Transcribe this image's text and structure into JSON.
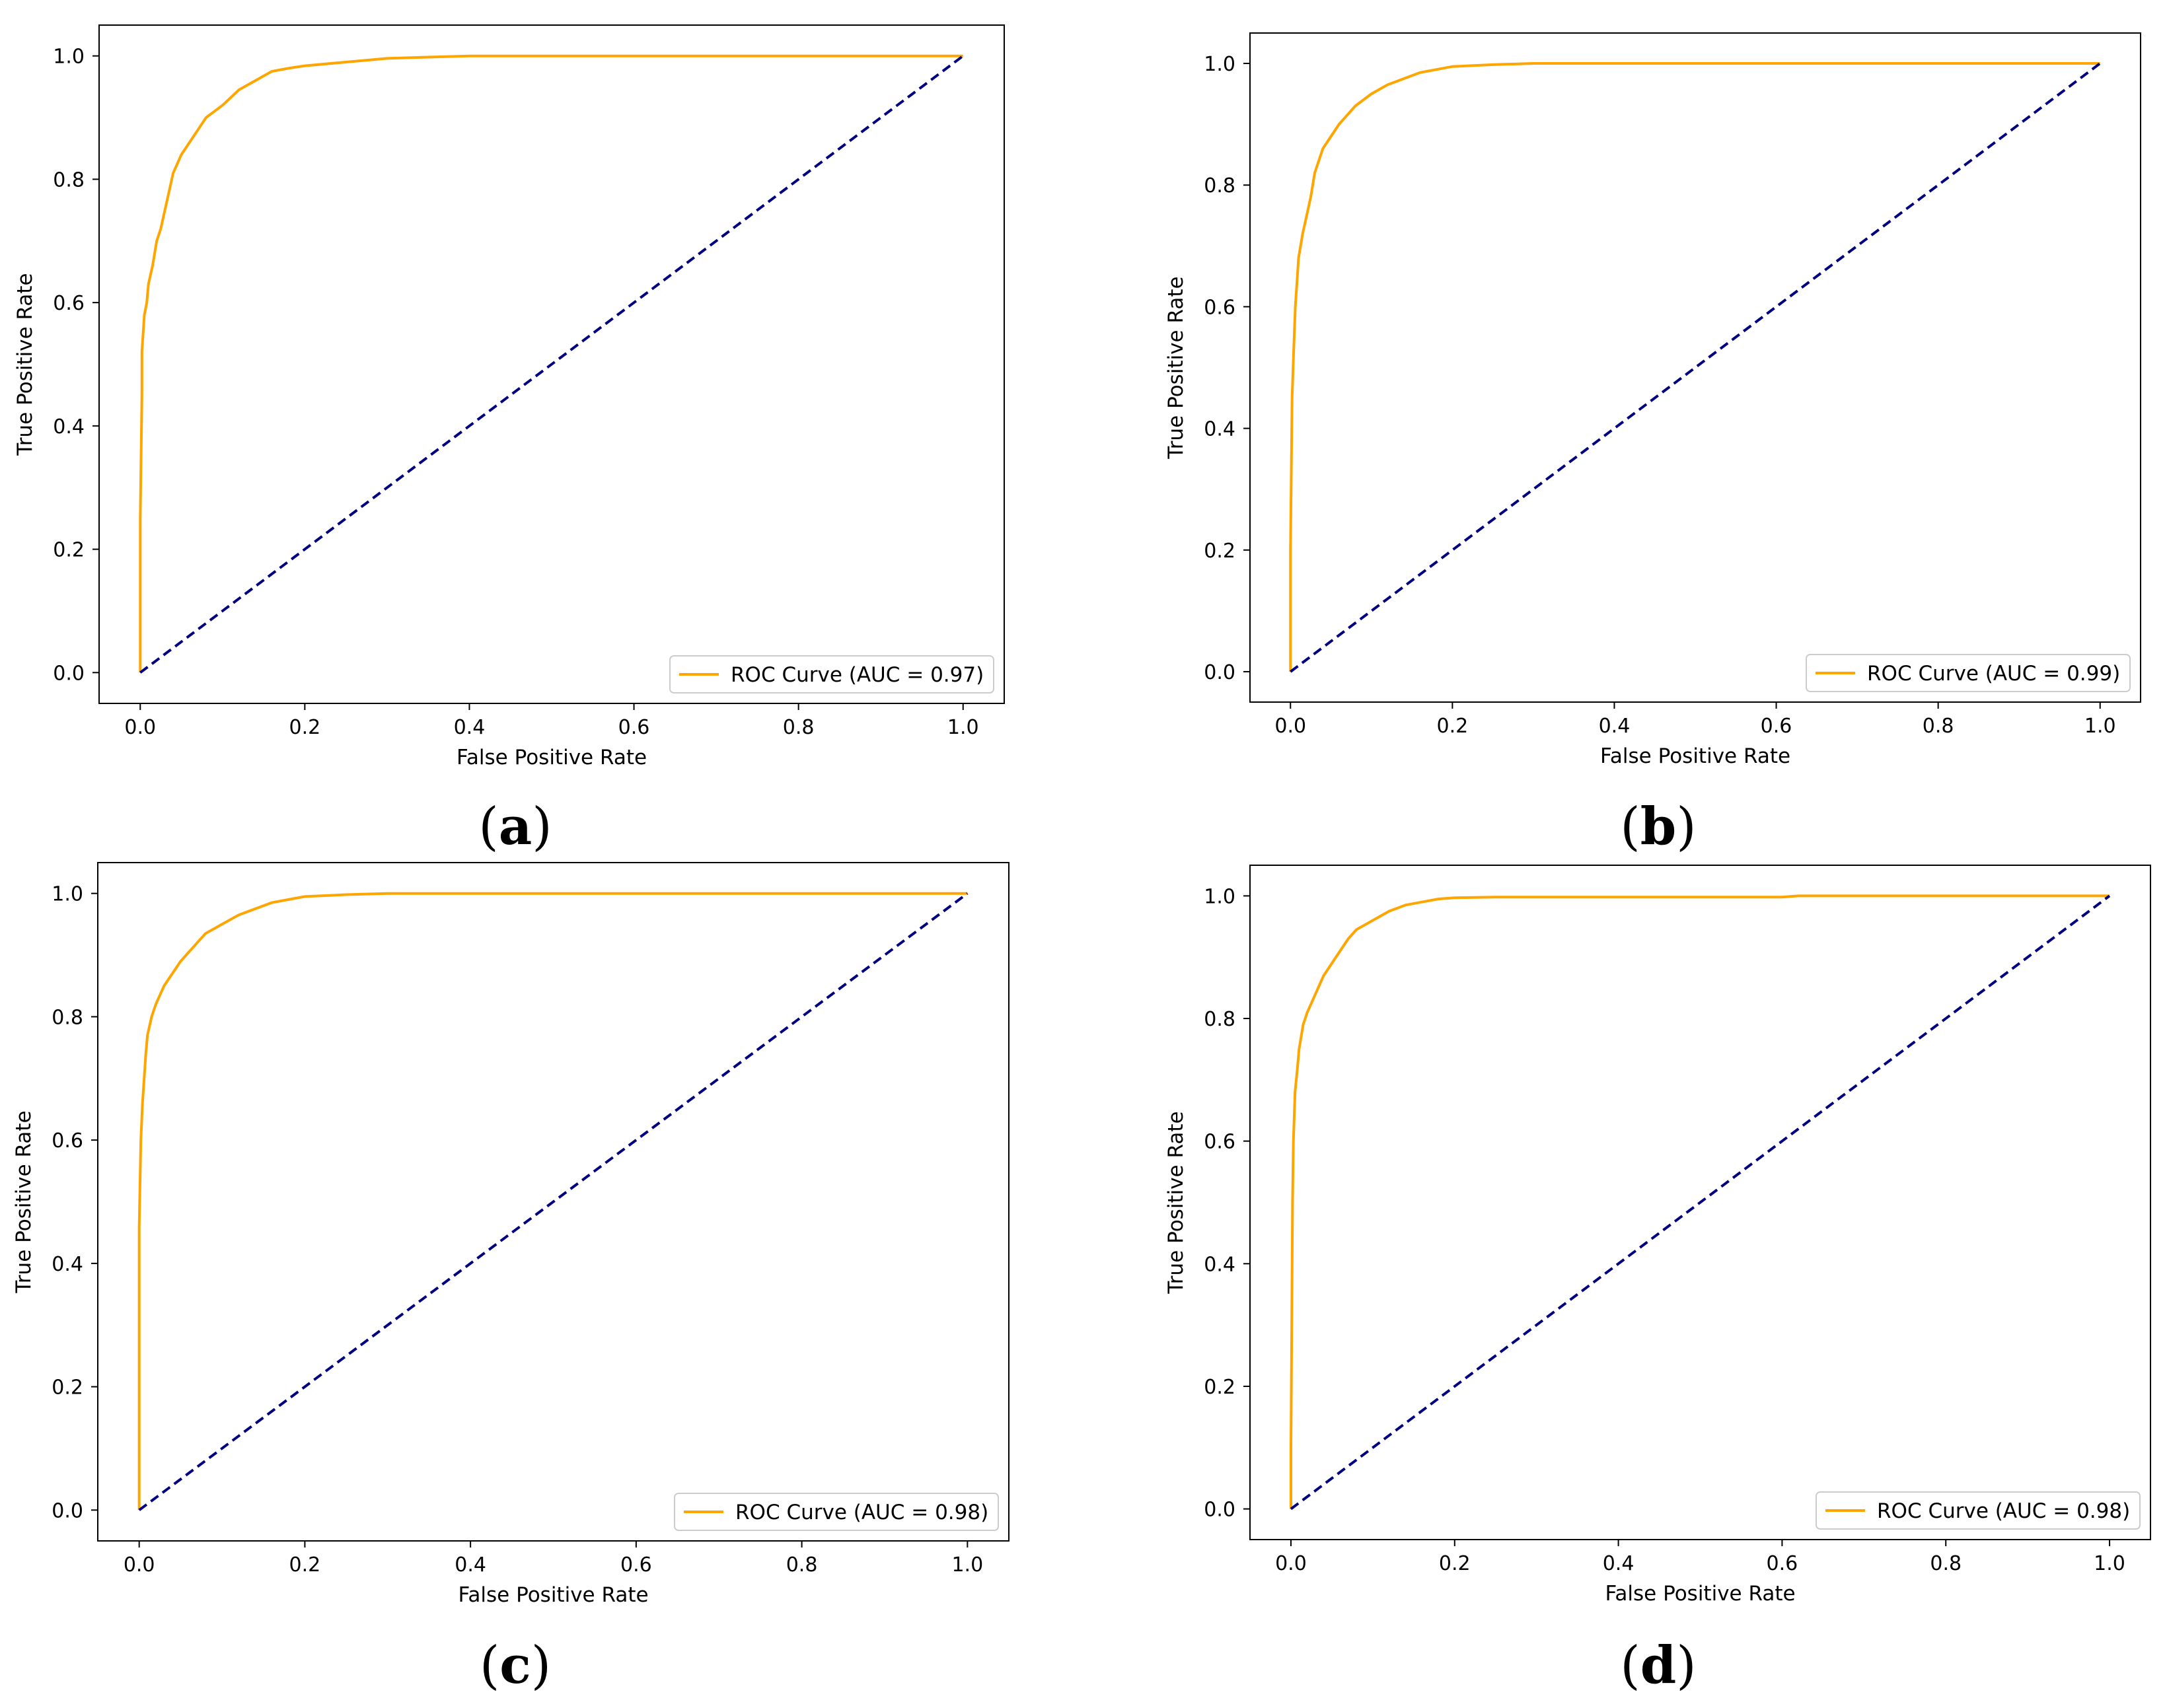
{
  "chart_data": [
    {
      "type": "line",
      "panel_label": "a",
      "xlabel": "False Positive Rate",
      "ylabel": "True Positive Rate",
      "xlim": [
        -0.05,
        1.05
      ],
      "ylim": [
        -0.05,
        1.05
      ],
      "xticks": [
        "0.0",
        "0.2",
        "0.4",
        "0.6",
        "0.8",
        "1.0"
      ],
      "yticks": [
        "0.0",
        "0.2",
        "0.4",
        "0.6",
        "0.8",
        "1.0"
      ],
      "legend_location": "lower-right",
      "series": [
        {
          "name": "ROC Curve (AUC = 0.97)",
          "color": "#ffa500",
          "style": "solid",
          "x": [
            0,
            0,
            0.002,
            0.002,
            0.005,
            0.008,
            0.01,
            0.015,
            0.02,
            0.025,
            0.03,
            0.035,
            0.04,
            0.05,
            0.06,
            0.07,
            0.08,
            0.09,
            0.1,
            0.12,
            0.14,
            0.16,
            0.18,
            0.2,
            0.25,
            0.3,
            0.35,
            0.4,
            0.45,
            0.5,
            0.6,
            0.7,
            0.8,
            0.9,
            1.0
          ],
          "y": [
            0,
            0.25,
            0.45,
            0.52,
            0.58,
            0.6,
            0.63,
            0.66,
            0.7,
            0.72,
            0.75,
            0.78,
            0.81,
            0.84,
            0.86,
            0.88,
            0.9,
            0.91,
            0.92,
            0.945,
            0.96,
            0.975,
            0.98,
            0.984,
            0.99,
            0.996,
            0.998,
            1.0,
            1.0,
            1.0,
            1.0,
            1.0,
            1.0,
            1.0,
            1.0
          ]
        },
        {
          "name": "chance",
          "color": "#000080",
          "style": "dashed",
          "x": [
            0,
            1
          ],
          "y": [
            0,
            1
          ]
        }
      ]
    },
    {
      "type": "line",
      "panel_label": "b",
      "xlabel": "False Positive Rate",
      "ylabel": "True Positive Rate",
      "xlim": [
        -0.05,
        1.05
      ],
      "ylim": [
        -0.05,
        1.05
      ],
      "xticks": [
        "0.0",
        "0.2",
        "0.4",
        "0.6",
        "0.8",
        "1.0"
      ],
      "yticks": [
        "0.0",
        "0.2",
        "0.4",
        "0.6",
        "0.8",
        "1.0"
      ],
      "legend_location": "lower-right",
      "series": [
        {
          "name": "ROC Curve (AUC = 0.99)",
          "color": "#ffa500",
          "style": "solid",
          "x": [
            0,
            0,
            0.002,
            0.004,
            0.006,
            0.008,
            0.01,
            0.015,
            0.02,
            0.025,
            0.03,
            0.04,
            0.05,
            0.06,
            0.07,
            0.08,
            0.1,
            0.12,
            0.14,
            0.16,
            0.18,
            0.2,
            0.25,
            0.3,
            0.4,
            0.5,
            0.6,
            0.7,
            0.8,
            0.9,
            1.0
          ],
          "y": [
            0,
            0.2,
            0.45,
            0.53,
            0.6,
            0.64,
            0.68,
            0.72,
            0.75,
            0.78,
            0.82,
            0.86,
            0.88,
            0.9,
            0.915,
            0.93,
            0.95,
            0.965,
            0.975,
            0.985,
            0.99,
            0.995,
            0.998,
            1.0,
            1.0,
            1.0,
            1.0,
            1.0,
            1.0,
            1.0,
            1.0
          ]
        },
        {
          "name": "chance",
          "color": "#000080",
          "style": "dashed",
          "x": [
            0,
            1
          ],
          "y": [
            0,
            1
          ]
        }
      ]
    },
    {
      "type": "line",
      "panel_label": "c",
      "xlabel": "False Positive Rate",
      "ylabel": "True Positive Rate",
      "xlim": [
        -0.05,
        1.05
      ],
      "ylim": [
        -0.05,
        1.05
      ],
      "xticks": [
        "0.0",
        "0.2",
        "0.4",
        "0.6",
        "0.8",
        "1.0"
      ],
      "yticks": [
        "0.0",
        "0.2",
        "0.4",
        "0.6",
        "0.8",
        "1.0"
      ],
      "legend_location": "lower-right",
      "series": [
        {
          "name": "ROC Curve (AUC = 0.98)",
          "color": "#ffa500",
          "style": "solid",
          "x": [
            0,
            0,
            0.002,
            0.004,
            0.006,
            0.008,
            0.01,
            0.015,
            0.02,
            0.03,
            0.04,
            0.05,
            0.06,
            0.07,
            0.08,
            0.1,
            0.12,
            0.14,
            0.16,
            0.18,
            0.2,
            0.25,
            0.3,
            0.4,
            0.5,
            0.6,
            0.7,
            0.8,
            0.9,
            1.0
          ],
          "y": [
            0,
            0.46,
            0.6,
            0.66,
            0.7,
            0.74,
            0.77,
            0.8,
            0.82,
            0.85,
            0.87,
            0.89,
            0.905,
            0.92,
            0.935,
            0.95,
            0.965,
            0.975,
            0.985,
            0.99,
            0.995,
            0.998,
            1.0,
            1.0,
            1.0,
            1.0,
            1.0,
            1.0,
            1.0,
            1.0
          ]
        },
        {
          "name": "chance",
          "color": "#000080",
          "style": "dashed",
          "x": [
            0,
            1
          ],
          "y": [
            0,
            1
          ]
        }
      ]
    },
    {
      "type": "line",
      "panel_label": "d",
      "xlabel": "False Positive Rate",
      "ylabel": "True Positive Rate",
      "xlim": [
        -0.05,
        1.05
      ],
      "ylim": [
        -0.05,
        1.05
      ],
      "xticks": [
        "0.0",
        "0.2",
        "0.4",
        "0.6",
        "0.8",
        "1.0"
      ],
      "yticks": [
        "0.0",
        "0.2",
        "0.4",
        "0.6",
        "0.8",
        "1.0"
      ],
      "legend_location": "lower-right",
      "series": [
        {
          "name": "ROC Curve (AUC = 0.98)",
          "color": "#ffa500",
          "style": "solid",
          "x": [
            0,
            0,
            0.002,
            0.003,
            0.005,
            0.008,
            0.01,
            0.015,
            0.02,
            0.03,
            0.04,
            0.05,
            0.06,
            0.07,
            0.08,
            0.1,
            0.12,
            0.14,
            0.16,
            0.18,
            0.2,
            0.25,
            0.3,
            0.4,
            0.5,
            0.6,
            0.62,
            0.7,
            0.8,
            0.9,
            1.0
          ],
          "y": [
            0,
            0.1,
            0.5,
            0.6,
            0.68,
            0.72,
            0.75,
            0.79,
            0.81,
            0.84,
            0.87,
            0.89,
            0.91,
            0.93,
            0.945,
            0.96,
            0.975,
            0.985,
            0.99,
            0.995,
            0.997,
            0.998,
            0.998,
            0.998,
            0.998,
            0.998,
            1.0,
            1.0,
            1.0,
            1.0,
            1.0
          ]
        },
        {
          "name": "chance",
          "color": "#000080",
          "style": "dashed",
          "x": [
            0,
            1
          ],
          "y": [
            0,
            1
          ]
        }
      ]
    }
  ]
}
